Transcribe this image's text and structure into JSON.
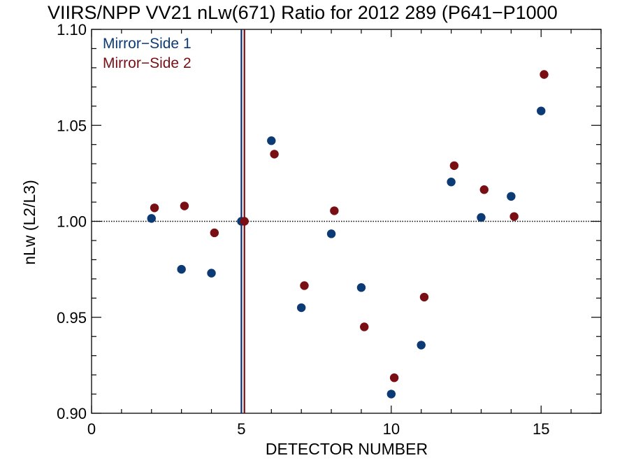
{
  "chart_data": {
    "type": "scatter",
    "title": "VIIRS/NPP VV21 nLw(671) Ratio for 2012 289 (P641−P1000",
    "xlabel": "DETECTOR NUMBER",
    "ylabel": "nLw (L2/L3)",
    "xlim": [
      0,
      17
    ],
    "ylim": [
      0.9,
      1.1
    ],
    "x_ticks": [
      0,
      5,
      10,
      15
    ],
    "x_tick_labels": [
      "0",
      "5",
      "10",
      "15"
    ],
    "y_ticks": [
      0.9,
      0.95,
      1.0,
      1.05,
      1.1
    ],
    "y_tick_labels": [
      "0.90",
      "0.95",
      "1.00",
      "1.05",
      "1.10"
    ],
    "reference_line": 1.0,
    "vertical_lines": [
      {
        "x": 5,
        "color": "#0b2a6b"
      },
      {
        "x": 5.1,
        "color": "#7a0a12"
      }
    ],
    "legend_position": "top-left",
    "series": [
      {
        "name": "Mirror−Side 1",
        "color": "#0b3a75",
        "x": [
          2,
          3,
          4,
          5,
          6,
          7,
          8,
          9,
          10,
          11,
          12,
          13,
          14,
          15
        ],
        "y": [
          1.0015,
          0.975,
          0.973,
          1.0,
          1.042,
          0.955,
          0.9935,
          0.9655,
          0.91,
          0.9355,
          1.0205,
          1.002,
          1.013,
          1.0575
        ]
      },
      {
        "name": "Mirror−Side 2",
        "color": "#790f14",
        "x": [
          2.1,
          3.1,
          4.1,
          5.1,
          6.1,
          7.1,
          8.1,
          9.1,
          10.1,
          11.1,
          12.1,
          13.1,
          14.1,
          15.1
        ],
        "y": [
          1.007,
          1.008,
          0.994,
          1.0,
          1.035,
          0.9665,
          1.0055,
          0.945,
          0.9185,
          0.9605,
          1.029,
          1.0165,
          1.0025,
          1.0765
        ]
      }
    ]
  }
}
